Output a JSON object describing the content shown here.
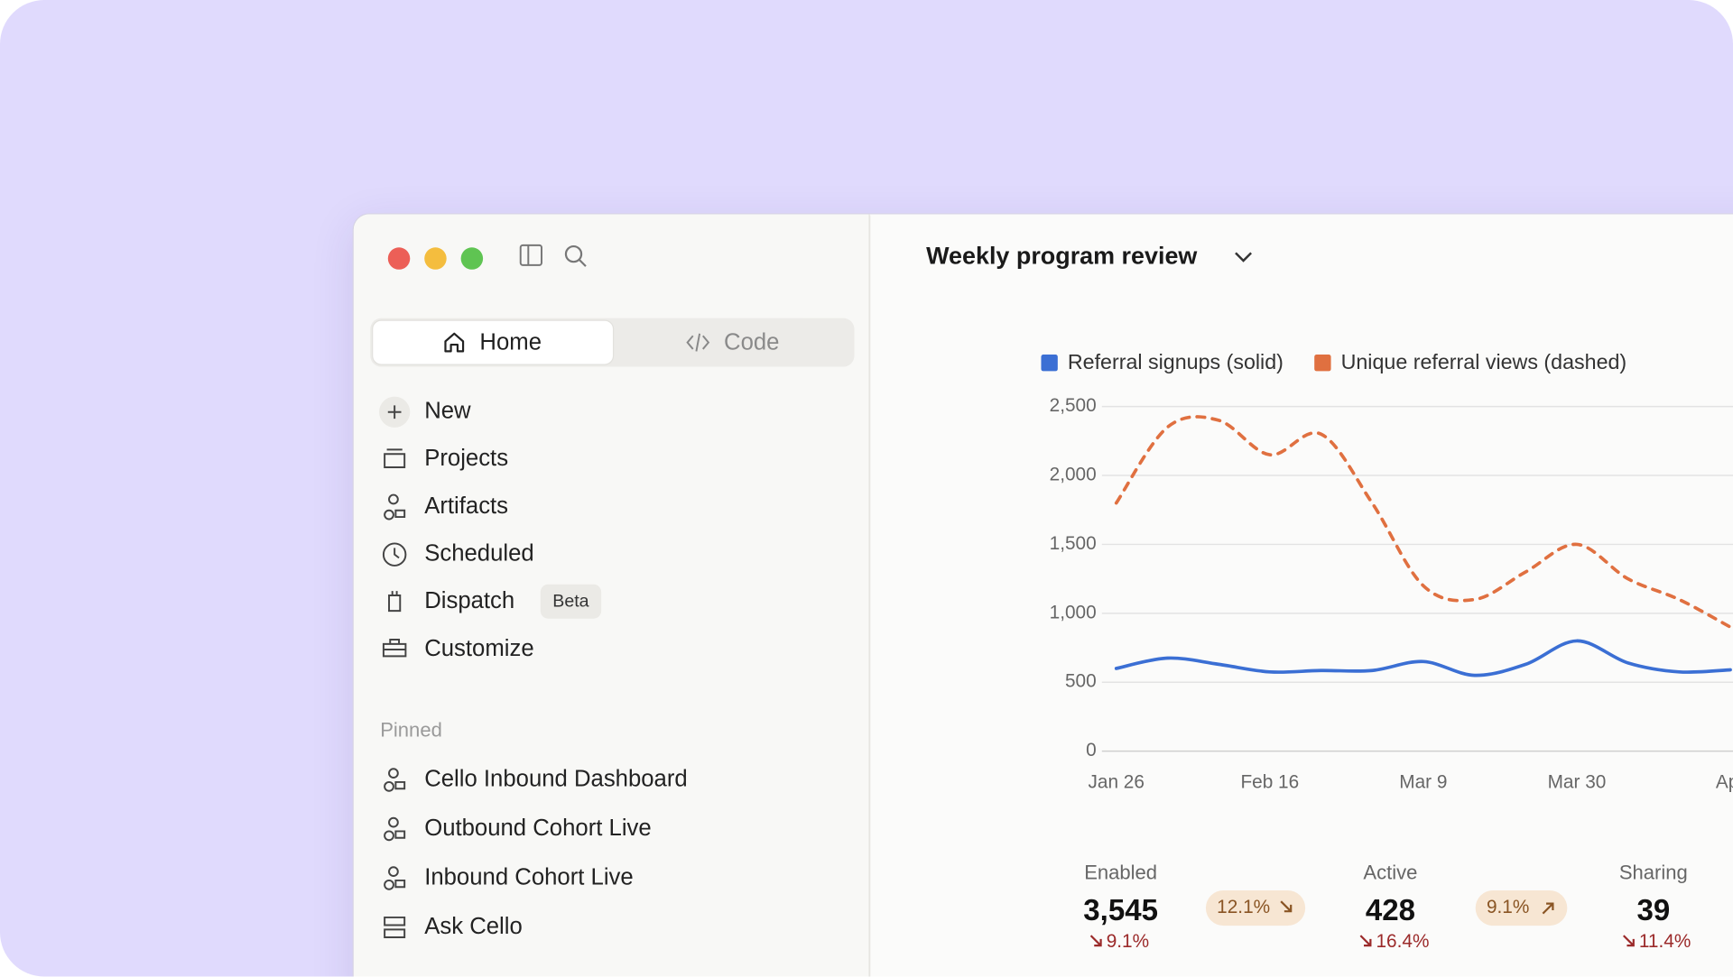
{
  "sidebar": {
    "tabs": [
      "Home",
      "Code"
    ],
    "nav": [
      "New",
      "Projects",
      "Artifacts",
      "Scheduled",
      "Dispatch",
      "Customize"
    ],
    "nav_badge": "Beta",
    "pinned_heading": "Pinned",
    "pinned": [
      "Cello Inbound Dashboard",
      "Outbound Cohort Live",
      "Inbound Cohort Live",
      "Ask Cello"
    ]
  },
  "header": {
    "title": "Weekly program review"
  },
  "chart_data": {
    "type": "line",
    "categories": [
      "Jan 26",
      null,
      null,
      "Feb 16",
      null,
      null,
      "Mar 9",
      null,
      null,
      "Mar 30",
      null,
      null,
      "Apr"
    ],
    "series": [
      {
        "name": "Referral signups (solid)",
        "color": "#3b6fd4",
        "dashed": false,
        "values": [
          600,
          675,
          630,
          575,
          585,
          585,
          650,
          550,
          630,
          800,
          640,
          575,
          590
        ]
      },
      {
        "name": "Unique referral views (dashed)",
        "color": "#e07040",
        "dashed": true,
        "values": [
          1800,
          2350,
          2400,
          2150,
          2300,
          1800,
          1200,
          1100,
          1300,
          1500,
          1250,
          1100,
          900
        ]
      }
    ],
    "ylim": [
      0,
      2500
    ],
    "yticks": [
      0,
      500,
      {
        "value": 1000,
        "label": "1,000"
      },
      {
        "value": 1500,
        "label": "1,500"
      },
      {
        "value": 2000,
        "label": "2,000"
      },
      {
        "value": 2500,
        "label": "2,500"
      }
    ],
    "grid": true
  },
  "stats": [
    {
      "label": "Enabled",
      "value": "3,545",
      "change": "9.1%"
    },
    {
      "label": "Active",
      "value": "428",
      "change": "16.4%"
    },
    {
      "label": "Sharing",
      "value": "39",
      "change": "11.4%"
    }
  ],
  "badges": [
    "12.1%",
    "9.1%"
  ]
}
